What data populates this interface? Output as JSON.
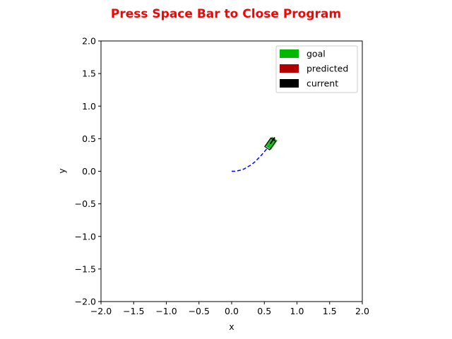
{
  "chart_data": {
    "type": "line",
    "title": "Press Space Bar to Close Program",
    "title_color": "#ff0000",
    "xlabel": "x",
    "ylabel": "y",
    "xlim": [
      -2.0,
      2.0
    ],
    "ylim": [
      -2.0,
      2.0
    ],
    "xticks": [
      "-2.0",
      "-1.5",
      "-1.0",
      "-0.5",
      "0.0",
      "0.5",
      "1.0",
      "1.5",
      "2.0"
    ],
    "yticks": [
      "-2.0",
      "-1.5",
      "-1.0",
      "-0.5",
      "0.0",
      "0.5",
      "1.0",
      "1.5",
      "2.0"
    ],
    "grid": false,
    "legend": {
      "placement": "top-right",
      "entries": [
        {
          "label": "goal",
          "color": "#00b800"
        },
        {
          "label": "predicted",
          "color": "#b00000"
        },
        {
          "label": "current",
          "color": "#000000"
        }
      ]
    },
    "series": [
      {
        "style": "dashed",
        "color": "#0000ff",
        "x": [
          0.0,
          0.05,
          0.1,
          0.15,
          0.2,
          0.25,
          0.3,
          0.35,
          0.4,
          0.45,
          0.5,
          0.55,
          0.59
        ],
        "y": [
          0.0,
          0.0,
          0.01,
          0.02,
          0.04,
          0.07,
          0.1,
          0.14,
          0.19,
          0.24,
          0.3,
          0.36,
          0.42
        ]
      }
    ],
    "vehicles": [
      {
        "role": "goal",
        "x": 0.61,
        "y": 0.43,
        "heading_deg": 55,
        "length": 0.16,
        "width": 0.09,
        "color": "#00b800"
      },
      {
        "role": "current",
        "x": 0.59,
        "y": 0.42,
        "heading_deg": 55,
        "length": 0.16,
        "width": 0.09,
        "color": "#000000"
      }
    ],
    "current_heading_arrow": {
      "from": [
        0.59,
        0.42
      ],
      "to": [
        0.66,
        0.52
      ],
      "color": "#000000"
    }
  }
}
